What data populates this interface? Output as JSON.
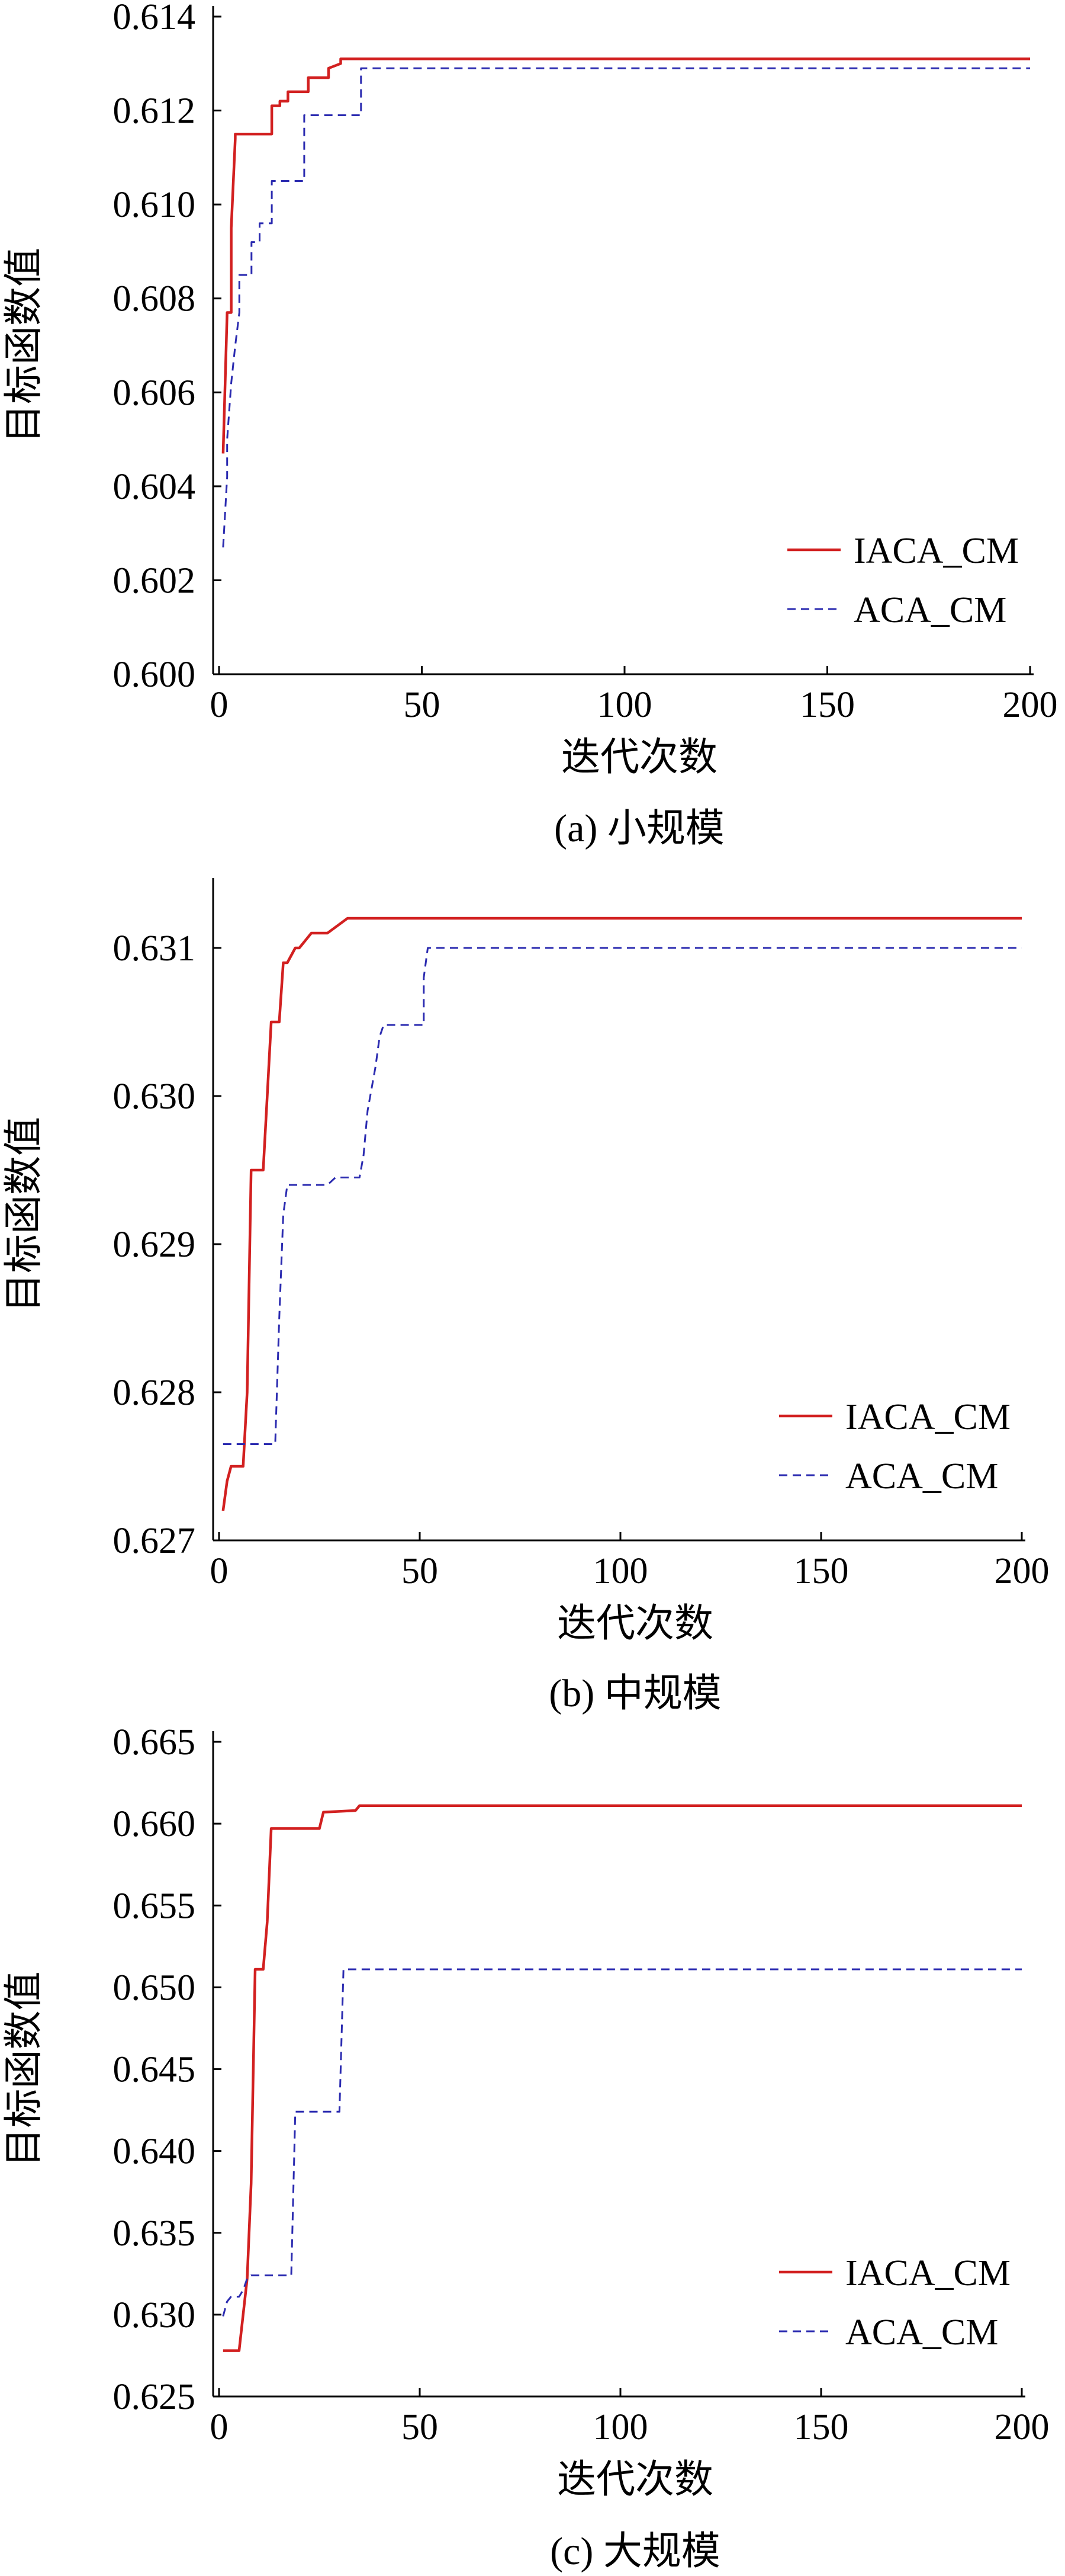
{
  "colors": {
    "iaca": "#d22020",
    "aca": "#2b2bb0",
    "axis": "#000000"
  },
  "chart_data": [
    {
      "type": "line",
      "caption": "(a) 小规模",
      "xlabel": "迭代次数",
      "ylabel": "目标函数值",
      "xlim": [
        0,
        200
      ],
      "ylim": [
        0.6,
        0.614
      ],
      "xticks": [
        0,
        50,
        100,
        150,
        200
      ],
      "xtick_labels": [
        "0",
        "50",
        "100",
        "150",
        "200"
      ],
      "yticks": [
        0.6,
        0.602,
        0.604,
        0.606,
        0.608,
        0.61,
        0.612,
        0.614
      ],
      "ytick_labels": [
        "0.600",
        "0.602",
        "0.604",
        "0.606",
        "0.608",
        "0.610",
        "0.612",
        "0.614"
      ],
      "grid": false,
      "legend_position": "bottom-right",
      "series": [
        {
          "name": "IACA_CM",
          "style": "solid",
          "color": "#d22020",
          "x": [
            1,
            2,
            2,
            3,
            3,
            4,
            4,
            13,
            13,
            15,
            15,
            17,
            17,
            22,
            22,
            27,
            27,
            30,
            30,
            200
          ],
          "y": [
            0.6047,
            0.6077,
            0.6077,
            0.6077,
            0.6095,
            0.6114,
            0.6115,
            0.6115,
            0.6121,
            0.6121,
            0.6122,
            0.6122,
            0.6124,
            0.6124,
            0.6127,
            0.6127,
            0.6129,
            0.613,
            0.6131,
            0.6131
          ]
        },
        {
          "name": "ACA_CM",
          "style": "dashed",
          "color": "#2b2bb0",
          "x": [
            1,
            2,
            2,
            3,
            4,
            5,
            5,
            8,
            8,
            10,
            10,
            13,
            13,
            21,
            21,
            35,
            35,
            200
          ],
          "y": [
            0.6027,
            0.6042,
            0.605,
            0.6062,
            0.607,
            0.6077,
            0.6085,
            0.6085,
            0.6092,
            0.6092,
            0.6096,
            0.6096,
            0.6105,
            0.6105,
            0.6119,
            0.6119,
            0.6129,
            0.6129
          ]
        }
      ]
    },
    {
      "type": "line",
      "caption": "(b) 中规模",
      "xlabel": "迭代次数",
      "ylabel": "目标函数值",
      "xlim": [
        0,
        200
      ],
      "ylim": [
        0.627,
        0.6314
      ],
      "xticks": [
        0,
        50,
        100,
        150,
        200
      ],
      "xtick_labels": [
        "0",
        "50",
        "100",
        "150",
        "200"
      ],
      "yticks": [
        0.627,
        0.628,
        0.629,
        0.63,
        0.631
      ],
      "ytick_labels": [
        "0.627",
        "0.628",
        "0.629",
        "0.630",
        "0.631"
      ],
      "grid": false,
      "legend_position": "bottom-right",
      "series": [
        {
          "name": "IACA_CM",
          "style": "solid",
          "color": "#d22020",
          "x": [
            1,
            2,
            3,
            6,
            7,
            8,
            11,
            12,
            13,
            15,
            16,
            17,
            19,
            20,
            23,
            24,
            27,
            32,
            44,
            50,
            200
          ],
          "y": [
            0.6272,
            0.6274,
            0.6275,
            0.6275,
            0.628,
            0.6295,
            0.6295,
            0.63,
            0.6305,
            0.6305,
            0.6309,
            0.6309,
            0.631,
            0.631,
            0.6311,
            0.6311,
            0.6311,
            0.6312,
            0.6312,
            0.6312,
            0.6312
          ]
        },
        {
          "name": "ACA_CM",
          "style": "dashed",
          "color": "#2b2bb0",
          "x": [
            1,
            14,
            15,
            16,
            17,
            27,
            29,
            35,
            36,
            37,
            39,
            40,
            41,
            51,
            51,
            52,
            53,
            200
          ],
          "y": [
            0.62765,
            0.62765,
            0.6285,
            0.6292,
            0.6294,
            0.6294,
            0.62945,
            0.62945,
            0.6296,
            0.6299,
            0.6302,
            0.6304,
            0.63048,
            0.63048,
            0.6308,
            0.631,
            0.631,
            0.631
          ]
        }
      ]
    },
    {
      "type": "line",
      "caption": "(c) 大规模",
      "xlabel": "迭代次数",
      "ylabel": "目标函数值",
      "xlim": [
        0,
        200
      ],
      "ylim": [
        0.625,
        0.665
      ],
      "xticks": [
        0,
        50,
        100,
        150,
        200
      ],
      "xtick_labels": [
        "0",
        "50",
        "100",
        "150",
        "200"
      ],
      "yticks": [
        0.625,
        0.63,
        0.635,
        0.64,
        0.645,
        0.65,
        0.655,
        0.66,
        0.665
      ],
      "ytick_labels": [
        "0.625",
        "0.630",
        "0.635",
        "0.640",
        "0.645",
        "0.650",
        "0.655",
        "0.660",
        "0.665"
      ],
      "grid": false,
      "legend_position": "bottom-right",
      "series": [
        {
          "name": "IACA_CM",
          "style": "solid",
          "color": "#d22020",
          "x": [
            1,
            5,
            6,
            7,
            8,
            9,
            11,
            12,
            13,
            25,
            26,
            34,
            35,
            200
          ],
          "y": [
            0.6278,
            0.6278,
            0.63,
            0.6322,
            0.638,
            0.6511,
            0.6511,
            0.654,
            0.6597,
            0.6597,
            0.6607,
            0.6608,
            0.6611,
            0.6611
          ]
        },
        {
          "name": "ACA_CM",
          "style": "dashed",
          "color": "#2b2bb0",
          "x": [
            1,
            2,
            3,
            5,
            6,
            7,
            8,
            18,
            19,
            30,
            31,
            200
          ],
          "y": [
            0.6299,
            0.6308,
            0.6311,
            0.6311,
            0.6315,
            0.6322,
            0.6324,
            0.6324,
            0.6424,
            0.6424,
            0.6511,
            0.6511
          ]
        }
      ]
    }
  ]
}
